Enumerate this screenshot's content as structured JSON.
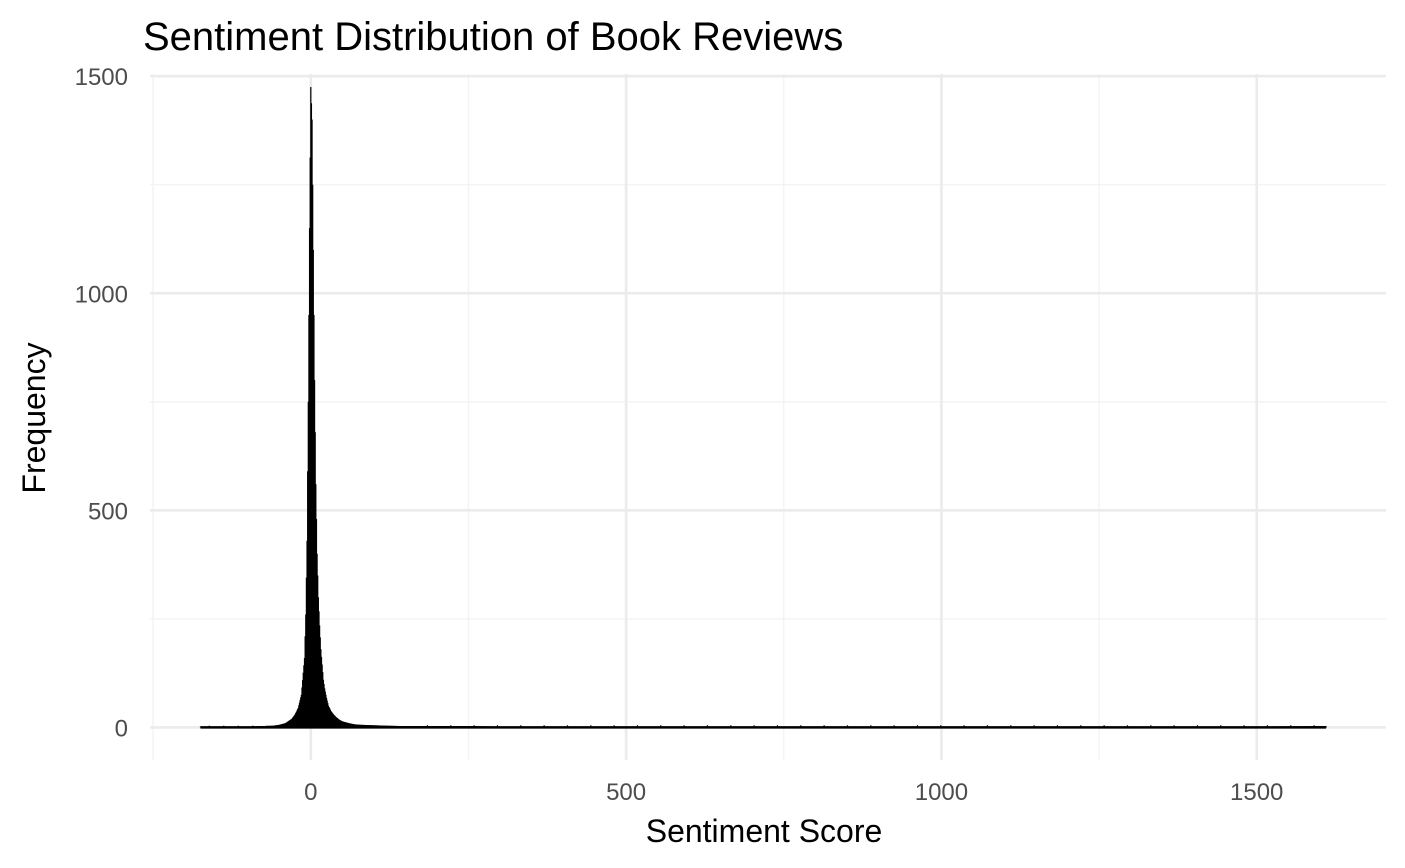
{
  "chart_data": {
    "type": "bar",
    "title": "Sentiment Distribution of Book Reviews",
    "xlabel": "Sentiment Score",
    "ylabel": "Frequency",
    "xlim": [
      -255,
      1705
    ],
    "ylim": [
      -75,
      1505
    ],
    "x_ticks": [
      0,
      500,
      1000,
      1500
    ],
    "x_tick_labels": [
      "0",
      "500",
      "1000",
      "1500"
    ],
    "y_ticks": [
      0,
      500,
      1000,
      1500
    ],
    "y_tick_labels": [
      "0",
      "500",
      "1000",
      "1500"
    ],
    "grid": true,
    "bar_color": "#000000",
    "series": [
      {
        "bins_x": [
          -175,
          -150,
          -125,
          -100,
          -80,
          -60,
          -50,
          -40,
          -30,
          -25,
          -20,
          -15,
          -10,
          -8,
          -6,
          -4,
          -2,
          0,
          2,
          4,
          6,
          8,
          10,
          12,
          14,
          16,
          18,
          20,
          22,
          25,
          28,
          32,
          36,
          40,
          45,
          50,
          60,
          70,
          80,
          100,
          120,
          150,
          200,
          250,
          300,
          400,
          500,
          600,
          700,
          864,
          1000,
          1200,
          1400,
          1610
        ],
        "values": [
          2,
          2,
          2,
          2,
          3,
          4,
          6,
          10,
          20,
          30,
          45,
          75,
          160,
          260,
          430,
          750,
          1150,
          1475,
          1400,
          1100,
          800,
          560,
          400,
          300,
          235,
          180,
          145,
          110,
          90,
          68,
          50,
          38,
          30,
          24,
          18,
          14,
          10,
          7,
          6,
          5,
          4,
          3,
          3,
          3,
          2,
          2,
          2,
          1,
          1,
          2,
          1,
          1,
          1,
          3
        ]
      }
    ]
  }
}
